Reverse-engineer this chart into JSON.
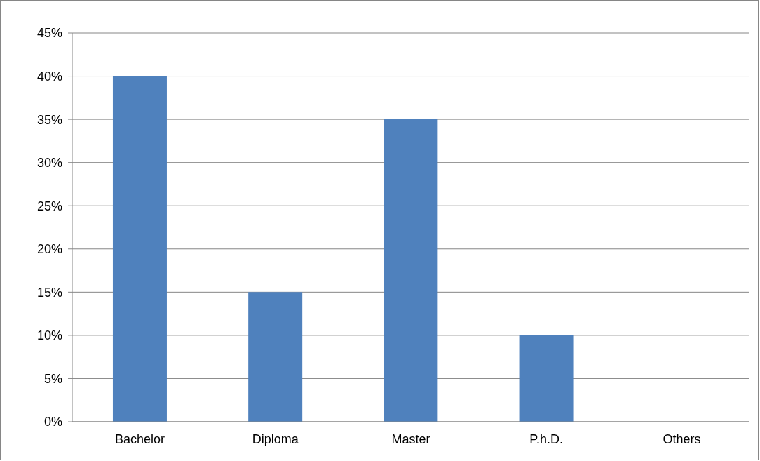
{
  "chart_data": {
    "type": "bar",
    "categories": [
      "Bachelor",
      "Diploma",
      "Master",
      "P.h.D.",
      "Others"
    ],
    "values": [
      40,
      15,
      35,
      10,
      0
    ],
    "color": "#4f81bd",
    "ylim": [
      0,
      45
    ],
    "yticks": [
      {
        "value": 0,
        "label": "0%"
      },
      {
        "value": 5,
        "label": "5%"
      },
      {
        "value": 10,
        "label": "10%"
      },
      {
        "value": 15,
        "label": "15%"
      },
      {
        "value": 20,
        "label": "20%"
      },
      {
        "value": 25,
        "label": "25%"
      },
      {
        "value": 30,
        "label": "30%"
      },
      {
        "value": 35,
        "label": "35%"
      },
      {
        "value": 40,
        "label": "40%"
      },
      {
        "value": 45,
        "label": "45%"
      }
    ],
    "grid": "y",
    "legend": false
  }
}
